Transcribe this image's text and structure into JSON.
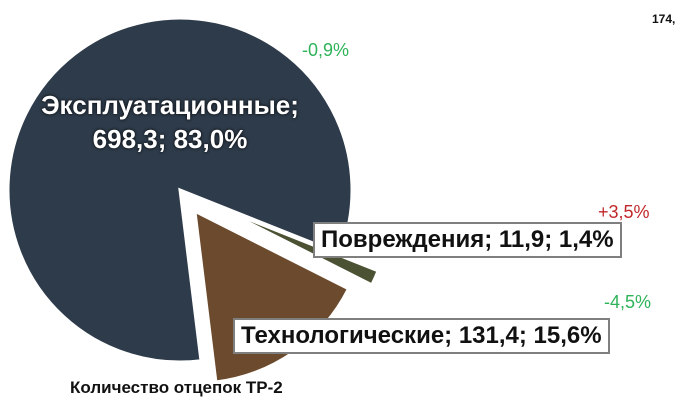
{
  "chart_data": {
    "type": "pie",
    "title": "Количество отцепок ТР-2",
    "values": [
      698.3,
      11.9,
      131.4
    ],
    "value_labels": [
      "Эксплуатационные; 698,3; 83,0%",
      "Повреждения; 11,9; 1,4%",
      "Технологические; 131,4; 15,6%"
    ],
    "colors": [
      "#2e3b4a",
      "#4b5233",
      "#6c4a2d"
    ],
    "annotations": [
      "-0,9%",
      "+3,5%",
      "-4,5%",
      "174,"
    ]
  }
}
